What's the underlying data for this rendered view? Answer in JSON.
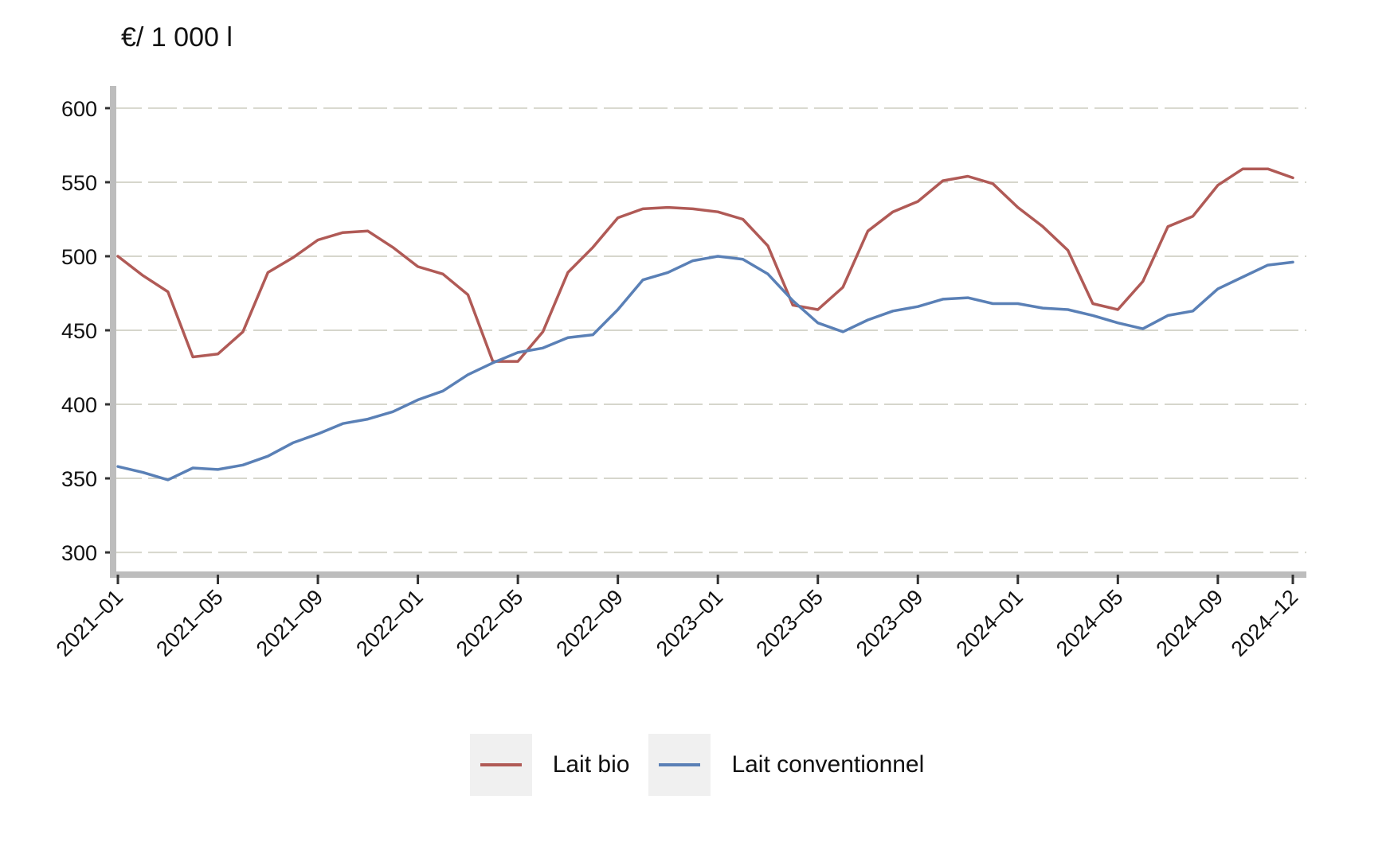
{
  "chart_data": {
    "type": "line",
    "title": "",
    "ylabel": "€/ 1 000 l",
    "xlabel": "",
    "ylim": [
      285,
      615
    ],
    "yticks": [
      300,
      350,
      400,
      450,
      500,
      550,
      600
    ],
    "grid": true,
    "legend_position": "bottom-center",
    "x": [
      "2021-01",
      "2021-02",
      "2021-03",
      "2021-04",
      "2021-05",
      "2021-06",
      "2021-07",
      "2021-08",
      "2021-09",
      "2021-10",
      "2021-11",
      "2021-12",
      "2022-01",
      "2022-02",
      "2022-03",
      "2022-04",
      "2022-05",
      "2022-06",
      "2022-07",
      "2022-08",
      "2022-09",
      "2022-10",
      "2022-11",
      "2022-12",
      "2023-01",
      "2023-02",
      "2023-03",
      "2023-04",
      "2023-05",
      "2023-06",
      "2023-07",
      "2023-08",
      "2023-09",
      "2023-10",
      "2023-11",
      "2023-12",
      "2024-01",
      "2024-02",
      "2024-03",
      "2024-04",
      "2024-05",
      "2024-06",
      "2024-07",
      "2024-08",
      "2024-09",
      "2024-10",
      "2024-11",
      "2024-12"
    ],
    "x_tick_labels": [
      "2021‒01",
      "2021‒05",
      "2021‒09",
      "2022‒01",
      "2022‒05",
      "2022‒09",
      "2023‒01",
      "2023‒05",
      "2023‒09",
      "2024‒01",
      "2024‒05",
      "2024‒09",
      "2024‒12"
    ],
    "series": [
      {
        "name": "Lait bio",
        "color": "#b05a56",
        "values": [
          500,
          487,
          476,
          432,
          434,
          449,
          489,
          499,
          511,
          516,
          517,
          506,
          493,
          488,
          474,
          429,
          429,
          449,
          489,
          506,
          526,
          532,
          533,
          532,
          530,
          525,
          507,
          467,
          464,
          479,
          517,
          530,
          537,
          551,
          554,
          549,
          533,
          520,
          504,
          468,
          464,
          483,
          520,
          527,
          548,
          559,
          559,
          553
        ]
      },
      {
        "name": "Lait conventionnel",
        "color": "#5a80b6",
        "values": [
          358,
          354,
          349,
          357,
          356,
          359,
          365,
          374,
          380,
          387,
          390,
          395,
          403,
          409,
          420,
          428,
          435,
          438,
          445,
          447,
          464,
          484,
          489,
          497,
          500,
          498,
          488,
          470,
          455,
          449,
          457,
          463,
          466,
          471,
          472,
          468,
          468,
          465,
          464,
          460,
          455,
          451,
          460,
          463,
          478,
          486,
          494,
          496
        ]
      }
    ]
  }
}
